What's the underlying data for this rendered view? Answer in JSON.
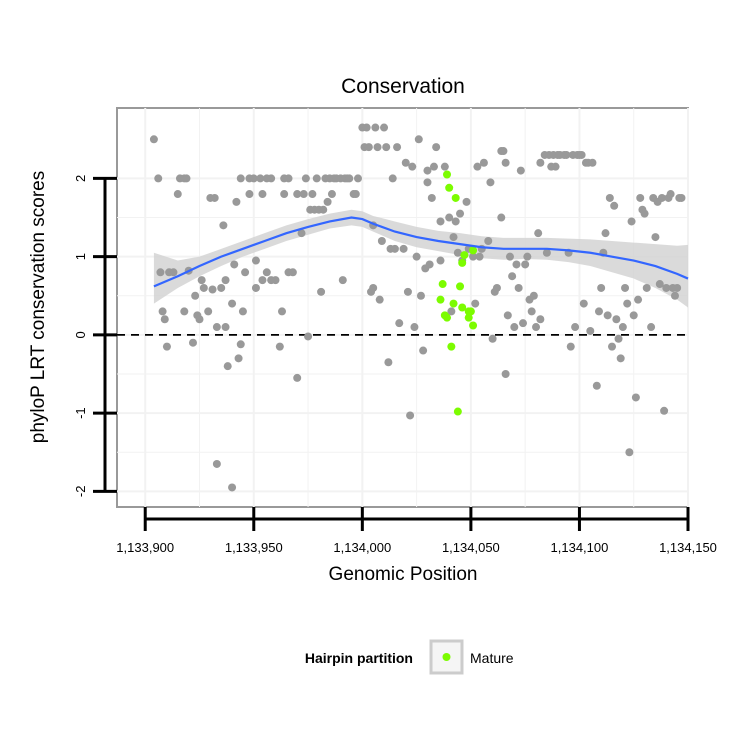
{
  "chart_data": {
    "type": "scatter",
    "title": "Conservation",
    "xlabel": "Genomic Position",
    "ylabel": "phyloP LRT conservation scores",
    "xlim": [
      1133887,
      1134150
    ],
    "ylim": [
      -2.2,
      2.9
    ],
    "x_ticks": [
      1133900,
      1133950,
      1134000,
      1134050,
      1134100,
      1134150
    ],
    "x_tick_labels": [
      "1,133,900",
      "1,133,950",
      "1,134,000",
      "1,134,050",
      "1,134,100",
      "1,134,150"
    ],
    "y_ticks": [
      -2,
      -1,
      0,
      1,
      2
    ],
    "y_tick_labels": [
      "-2",
      "-1",
      "0",
      "1",
      "2"
    ],
    "reference_line": 0,
    "grid": true,
    "legend": {
      "title": "Hairpin partition",
      "entries": [
        "Mature"
      ],
      "placement": "bottom"
    },
    "colors": {
      "background": "#ffffff",
      "grid": "#f2f2f2",
      "other_points": "#999999",
      "mature_points": "#7cfc00",
      "smooth": "#3366ff",
      "ribbon": "#d3d3d3"
    },
    "series": [
      {
        "points": [
          [
            1133904,
            2.5
          ],
          [
            1133906,
            2.0
          ],
          [
            1133907,
            0.8
          ],
          [
            1133908,
            0.3
          ],
          [
            1133909,
            0.2
          ],
          [
            1133910,
            -0.15
          ],
          [
            1133911,
            0.8
          ],
          [
            1133913,
            0.8
          ],
          [
            1133915,
            1.8
          ],
          [
            1133916,
            2.0
          ],
          [
            1133918,
            0.3
          ],
          [
            1133918,
            2.0
          ],
          [
            1133919,
            2.0
          ],
          [
            1133920,
            0.82
          ],
          [
            1133922,
            -0.1
          ],
          [
            1133923,
            0.5
          ],
          [
            1133924,
            0.25
          ],
          [
            1133925,
            0.2
          ],
          [
            1133926,
            0.7
          ],
          [
            1133927,
            0.6
          ],
          [
            1133929,
            0.3
          ],
          [
            1133930,
            1.75
          ],
          [
            1133931,
            0.58
          ],
          [
            1133932,
            1.75
          ],
          [
            1133933,
            0.1
          ],
          [
            1133933,
            -1.65
          ],
          [
            1133935,
            0.6
          ],
          [
            1133936,
            1.4
          ],
          [
            1133937,
            0.1
          ],
          [
            1133937,
            0.7
          ],
          [
            1133938,
            -0.4
          ],
          [
            1133940,
            -1.95
          ],
          [
            1133940,
            0.4
          ],
          [
            1133941,
            0.9
          ],
          [
            1133942,
            1.7
          ],
          [
            1133943,
            -0.3
          ],
          [
            1133944,
            2.0
          ],
          [
            1133944,
            -0.12
          ],
          [
            1133945,
            0.3
          ],
          [
            1133946,
            0.8
          ],
          [
            1133948,
            2.0
          ],
          [
            1133948,
            1.8
          ],
          [
            1133950,
            2.0
          ],
          [
            1133951,
            0.6
          ],
          [
            1133951,
            0.95
          ],
          [
            1133953,
            2.0
          ],
          [
            1133954,
            1.8
          ],
          [
            1133954,
            0.7
          ],
          [
            1133956,
            2.0
          ],
          [
            1133956,
            0.8
          ],
          [
            1133958,
            2.0
          ],
          [
            1133958,
            0.7
          ],
          [
            1133960,
            0.7
          ],
          [
            1133962,
            -0.15
          ],
          [
            1133963,
            0.3
          ],
          [
            1133964,
            2.0
          ],
          [
            1133964,
            1.8
          ],
          [
            1133966,
            2.0
          ],
          [
            1133966,
            0.8
          ],
          [
            1133968,
            0.8
          ],
          [
            1133970,
            1.8
          ],
          [
            1133970,
            -0.55
          ],
          [
            1133972,
            1.3
          ],
          [
            1133973,
            1.8
          ],
          [
            1133974,
            2.0
          ],
          [
            1133975,
            -0.02
          ],
          [
            1133976,
            1.6
          ],
          [
            1133977,
            1.8
          ],
          [
            1133978,
            1.6
          ],
          [
            1133979,
            2.0
          ],
          [
            1133980,
            1.6
          ],
          [
            1133981,
            0.55
          ],
          [
            1133982,
            1.6
          ],
          [
            1133983,
            2.0
          ],
          [
            1133984,
            1.7
          ],
          [
            1133985,
            2.0
          ],
          [
            1133986,
            1.8
          ],
          [
            1133987,
            2.0
          ],
          [
            1133988,
            2.0
          ],
          [
            1133990,
            2.0
          ],
          [
            1133991,
            0.7
          ],
          [
            1133992,
            2.0
          ],
          [
            1133993,
            2.0
          ],
          [
            1133994,
            2.0
          ],
          [
            1133996,
            1.8
          ],
          [
            1133997,
            1.8
          ],
          [
            1133998,
            2.0
          ],
          [
            1134000,
            2.65
          ],
          [
            1134001,
            2.4
          ],
          [
            1134002,
            2.65
          ],
          [
            1134003,
            2.4
          ],
          [
            1134004,
            0.55
          ],
          [
            1134005,
            0.6
          ],
          [
            1134005,
            1.4
          ],
          [
            1134006,
            2.65
          ],
          [
            1134007,
            2.4
          ],
          [
            1134008,
            0.45
          ],
          [
            1134009,
            1.2
          ],
          [
            1134010,
            2.65
          ],
          [
            1134011,
            2.4
          ],
          [
            1134012,
            -0.35
          ],
          [
            1134013,
            1.1
          ],
          [
            1134014,
            2.0
          ],
          [
            1134015,
            1.1
          ],
          [
            1134016,
            2.4
          ],
          [
            1134017,
            0.15
          ],
          [
            1134019,
            1.1
          ],
          [
            1134020,
            2.2
          ],
          [
            1134021,
            0.55
          ],
          [
            1134022,
            -1.03
          ],
          [
            1134023,
            2.15
          ],
          [
            1134024,
            0.1
          ],
          [
            1134025,
            1.0
          ],
          [
            1134026,
            2.5
          ],
          [
            1134027,
            0.5
          ],
          [
            1134028,
            -0.2
          ],
          [
            1134029,
            0.85
          ],
          [
            1134030,
            1.95
          ],
          [
            1134030,
            2.1
          ],
          [
            1134031,
            0.9
          ],
          [
            1134032,
            1.75
          ],
          [
            1134033,
            2.15
          ],
          [
            1134034,
            2.4
          ],
          [
            1134036,
            0.95
          ],
          [
            1134036,
            1.45
          ],
          [
            1134038,
            2.15
          ],
          [
            1134040,
            1.5
          ],
          [
            1134041,
            0.3
          ],
          [
            1134042,
            1.25
          ],
          [
            1134043,
            1.45
          ],
          [
            1134044,
            1.05
          ],
          [
            1134045,
            1.55
          ],
          [
            1134046,
            0.95
          ],
          [
            1134048,
            1.7
          ],
          [
            1134049,
            1.1
          ],
          [
            1134051,
            1.0
          ],
          [
            1134052,
            0.4
          ],
          [
            1134053,
            2.15
          ],
          [
            1134054,
            1.0
          ],
          [
            1134055,
            1.1
          ],
          [
            1134056,
            2.2
          ],
          [
            1134058,
            1.2
          ],
          [
            1134059,
            1.95
          ],
          [
            1134060,
            -0.05
          ],
          [
            1134061,
            0.55
          ],
          [
            1134062,
            0.6
          ],
          [
            1134064,
            1.5
          ],
          [
            1134064,
            2.35
          ],
          [
            1134065,
            2.35
          ],
          [
            1134066,
            -0.5
          ],
          [
            1134066,
            2.2
          ],
          [
            1134067,
            0.25
          ],
          [
            1134068,
            1.0
          ],
          [
            1134069,
            0.75
          ],
          [
            1134070,
            0.1
          ],
          [
            1134071,
            0.9
          ],
          [
            1134072,
            0.6
          ],
          [
            1134073,
            2.1
          ],
          [
            1134074,
            0.15
          ],
          [
            1134075,
            0.9
          ],
          [
            1134076,
            1.0
          ],
          [
            1134077,
            0.45
          ],
          [
            1134078,
            0.3
          ],
          [
            1134079,
            0.5
          ],
          [
            1134080,
            0.1
          ],
          [
            1134081,
            1.3
          ],
          [
            1134082,
            2.2
          ],
          [
            1134082,
            0.2
          ],
          [
            1134084,
            2.3
          ],
          [
            1134085,
            1.05
          ],
          [
            1134086,
            2.3
          ],
          [
            1134087,
            2.15
          ],
          [
            1134088,
            2.3
          ],
          [
            1134089,
            2.15
          ],
          [
            1134090,
            2.3
          ],
          [
            1134091,
            2.3
          ],
          [
            1134093,
            2.3
          ],
          [
            1134094,
            2.3
          ],
          [
            1134095,
            1.05
          ],
          [
            1134096,
            -0.15
          ],
          [
            1134097,
            2.3
          ],
          [
            1134098,
            0.1
          ],
          [
            1134099,
            2.3
          ],
          [
            1134100,
            2.3
          ],
          [
            1134101,
            2.3
          ],
          [
            1134102,
            0.4
          ],
          [
            1134103,
            2.2
          ],
          [
            1134104,
            2.2
          ],
          [
            1134105,
            0.05
          ],
          [
            1134106,
            2.2
          ],
          [
            1134108,
            -0.65
          ],
          [
            1134109,
            0.3
          ],
          [
            1134110,
            0.6
          ],
          [
            1134111,
            1.05
          ],
          [
            1134112,
            1.3
          ],
          [
            1134113,
            0.25
          ],
          [
            1134114,
            1.75
          ],
          [
            1134115,
            -0.15
          ],
          [
            1134116,
            1.65
          ],
          [
            1134117,
            0.2
          ],
          [
            1134118,
            -0.05
          ],
          [
            1134119,
            -0.3
          ],
          [
            1134120,
            0.1
          ],
          [
            1134121,
            0.6
          ],
          [
            1134122,
            0.4
          ],
          [
            1134123,
            -1.5
          ],
          [
            1134124,
            1.45
          ],
          [
            1134125,
            0.25
          ],
          [
            1134126,
            -0.8
          ],
          [
            1134127,
            0.45
          ],
          [
            1134128,
            1.75
          ],
          [
            1134129,
            1.6
          ],
          [
            1134130,
            1.55
          ],
          [
            1134131,
            0.6
          ],
          [
            1134133,
            0.1
          ],
          [
            1134134,
            1.75
          ],
          [
            1134135,
            1.25
          ],
          [
            1134136,
            1.7
          ],
          [
            1134137,
            0.65
          ],
          [
            1134138,
            1.75
          ],
          [
            1134139,
            -0.97
          ],
          [
            1134140,
            0.6
          ],
          [
            1134141,
            1.75
          ],
          [
            1134142,
            1.8
          ],
          [
            1134143,
            0.6
          ],
          [
            1134144,
            0.5
          ],
          [
            1134145,
            0.6
          ],
          [
            1134146,
            1.75
          ],
          [
            1134147,
            1.75
          ]
        ]
      },
      {
        "name": "Mature",
        "points": [
          [
            1134036,
            0.45
          ],
          [
            1134037,
            0.65
          ],
          [
            1134038,
            0.25
          ],
          [
            1134039,
            0.22
          ],
          [
            1134039,
            2.05
          ],
          [
            1134040,
            1.88
          ],
          [
            1134041,
            -0.15
          ],
          [
            1134042,
            0.4
          ],
          [
            1134043,
            1.75
          ],
          [
            1134044,
            -0.98
          ],
          [
            1134045,
            0.62
          ],
          [
            1134046,
            0.92
          ],
          [
            1134046,
            0.35
          ],
          [
            1134047,
            1.02
          ],
          [
            1134049,
            0.3
          ],
          [
            1134049,
            0.22
          ],
          [
            1134050,
            0.3
          ],
          [
            1134051,
            0.12
          ],
          [
            1134051,
            1.08
          ]
        ]
      }
    ],
    "smooth": {
      "x": [
        1133904,
        1133915,
        1133925,
        1133935,
        1133945,
        1133955,
        1133965,
        1133975,
        1133985,
        1133995,
        1134000,
        1134005,
        1134015,
        1134025,
        1134035,
        1134045,
        1134055,
        1134065,
        1134075,
        1134085,
        1134095,
        1134105,
        1134115,
        1134125,
        1134135,
        1134145,
        1134150
      ],
      "y": [
        0.62,
        0.75,
        0.88,
        1.0,
        1.1,
        1.2,
        1.3,
        1.38,
        1.45,
        1.5,
        1.48,
        1.42,
        1.32,
        1.25,
        1.2,
        1.16,
        1.12,
        1.1,
        1.1,
        1.1,
        1.08,
        1.05,
        1.0,
        0.95,
        0.88,
        0.78,
        0.72
      ],
      "ymin": [
        0.4,
        0.6,
        0.75,
        0.88,
        1.0,
        1.1,
        1.2,
        1.28,
        1.36,
        1.4,
        1.38,
        1.32,
        1.2,
        1.12,
        1.07,
        1.02,
        0.98,
        0.96,
        0.97,
        0.96,
        0.93,
        0.88,
        0.8,
        0.72,
        0.6,
        0.45,
        0.35
      ],
      "ymax": [
        1.05,
        0.95,
        1.0,
        1.1,
        1.2,
        1.3,
        1.4,
        1.48,
        1.55,
        1.6,
        1.58,
        1.52,
        1.45,
        1.38,
        1.33,
        1.3,
        1.26,
        1.24,
        1.24,
        1.24,
        1.23,
        1.22,
        1.2,
        1.18,
        1.16,
        1.14,
        1.15
      ]
    }
  }
}
